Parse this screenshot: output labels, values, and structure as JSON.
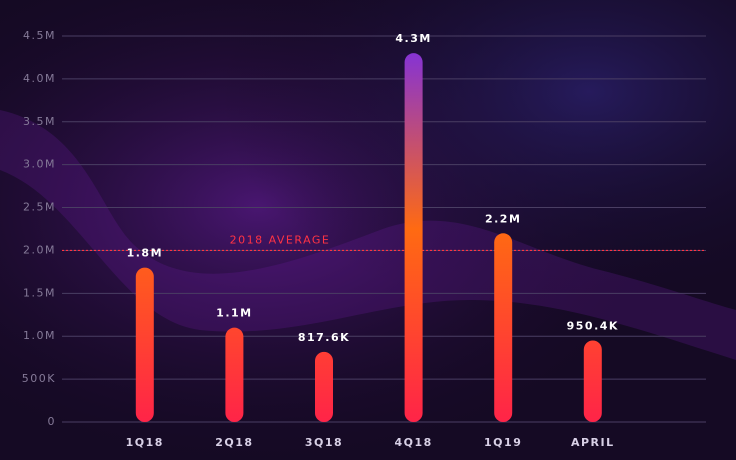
{
  "chart_data": {
    "type": "bar",
    "categories": [
      "1Q18",
      "2Q18",
      "3Q18",
      "4Q18",
      "1Q19",
      "APRIL"
    ],
    "values": [
      1800000,
      1100000,
      817600,
      4300000,
      2200000,
      950400
    ],
    "value_labels": [
      "1.8M",
      "1.1M",
      "817.6K",
      "4.3M",
      "2.2M",
      "950.4K"
    ],
    "colors": [
      "#ff2448",
      "#ff6a12",
      "#7a2ee6"
    ],
    "ylim": [
      0,
      4500000
    ],
    "yticks": [
      0,
      {
        "value": 500000,
        "label": "500K"
      },
      {
        "value": 1000000,
        "label": "1.0M"
      },
      {
        "value": 1500000,
        "label": "1.5M"
      },
      {
        "value": 2000000,
        "label": "2.0M"
      },
      {
        "value": 2500000,
        "label": "2.5M"
      },
      {
        "value": 3000000,
        "label": "3.0M"
      },
      {
        "value": 3500000,
        "label": "3.5M"
      },
      {
        "value": 4000000,
        "label": "4.0M"
      },
      {
        "value": 4500000,
        "label": "4.5M"
      }
    ],
    "grid": true,
    "reference_line": {
      "value": 2000000,
      "label": "2018 AVERAGE",
      "color": "#ff3344"
    }
  }
}
